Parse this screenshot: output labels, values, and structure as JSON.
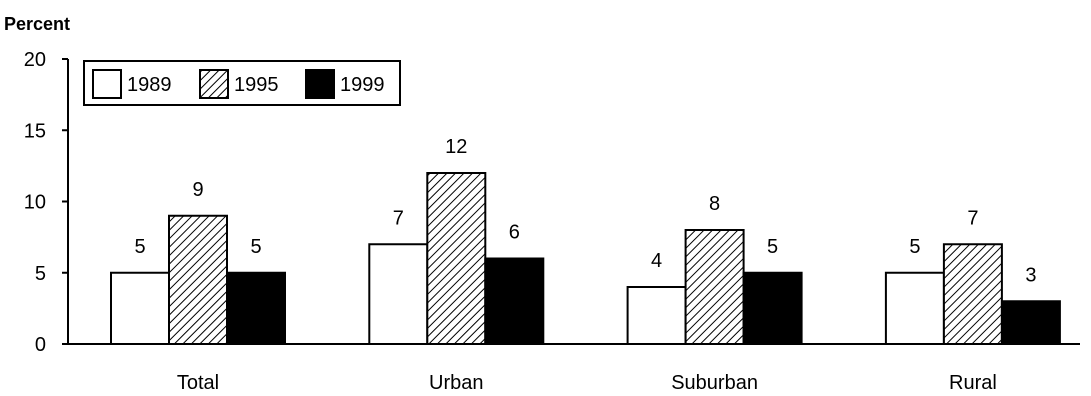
{
  "chart_data": {
    "type": "bar",
    "title": "",
    "ylabel": "Percent",
    "xlabel": "",
    "ylim": [
      0,
      20
    ],
    "yticks": [
      0,
      5,
      10,
      15,
      20
    ],
    "grid": false,
    "legend_position": "top-left",
    "categories": [
      "Total",
      "Urban",
      "Suburban",
      "Rural"
    ],
    "series": [
      {
        "name": "1989",
        "values": [
          5,
          7,
          4,
          5
        ],
        "fill": "white"
      },
      {
        "name": "1995",
        "values": [
          9,
          12,
          8,
          7
        ],
        "fill": "hatched"
      },
      {
        "name": "1999",
        "values": [
          5,
          6,
          5,
          3
        ],
        "fill": "black"
      }
    ],
    "data_labels": true,
    "colors": {
      "outline": "#000000",
      "solid": "#000000",
      "background": "#ffffff"
    }
  }
}
